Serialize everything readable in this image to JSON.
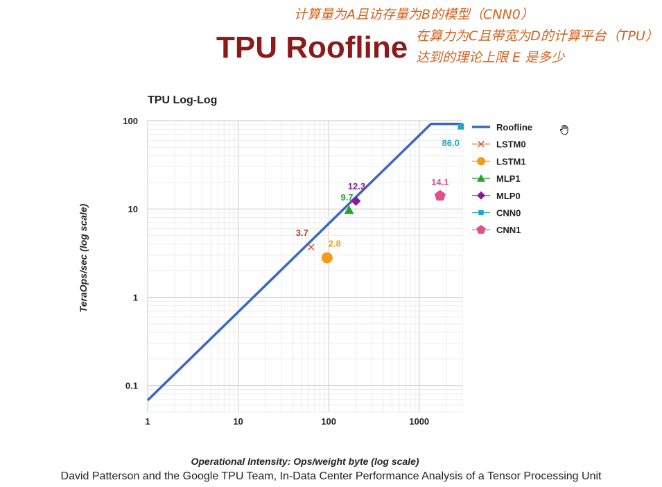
{
  "slide": {
    "title": "TPU Roofline",
    "annotation_lines": [
      "计算量为A且访存量为B的模型（CNN0）",
      "在算力为C且带宽为D的计算平台（TPU）",
      "达到的理论上限 E 是多少"
    ],
    "citation": "David Patterson and the Google TPU Team, In-Data Center Performance Analysis of a Tensor Processing Unit"
  },
  "chart_data": {
    "type": "scatter",
    "title": "TPU Log-Log",
    "xlabel": "Operational Intensity: Ops/weight byte (log scale)",
    "ylabel": "TeraOps/sec (log scale)",
    "xscale": "log",
    "yscale": "log",
    "xlim": [
      1,
      3000
    ],
    "ylim": [
      0.05,
      100
    ],
    "xticks": [
      {
        "value": 1,
        "label": "1"
      },
      {
        "value": 10,
        "label": "10"
      },
      {
        "value": 100,
        "label": "100"
      },
      {
        "value": 1000,
        "label": "1000"
      }
    ],
    "yticks": [
      {
        "value": 0.1,
        "label": "0.1"
      },
      {
        "value": 1,
        "label": "1"
      },
      {
        "value": 10,
        "label": "10"
      },
      {
        "value": 100,
        "label": "100"
      }
    ],
    "grid": true,
    "legend_position": "right",
    "roofline": {
      "name": "Roofline",
      "color": "#3a66c4",
      "points": [
        [
          1,
          0.068
        ],
        [
          1350,
          92
        ],
        [
          2950,
          92
        ]
      ]
    },
    "series": [
      {
        "name": "LSTM0",
        "marker": "x",
        "color": "#d9542c",
        "x": 64,
        "y": 3.7,
        "label": "3.7",
        "label_color": "#c0392b"
      },
      {
        "name": "LSTM1",
        "marker": "circle",
        "color": "#f39c1a",
        "x": 96,
        "y": 2.8,
        "label": "2.8",
        "label_color": "#f39c1a"
      },
      {
        "name": "MLP1",
        "marker": "triangle",
        "color": "#2ca02c",
        "x": 168,
        "y": 9.7,
        "label": "9.7",
        "label_color": "#2ca02c"
      },
      {
        "name": "MLP0",
        "marker": "diamond",
        "color": "#8b1a9b",
        "x": 200,
        "y": 12.3,
        "label": "12.3",
        "label_color": "#8b1a9b"
      },
      {
        "name": "CNN0",
        "marker": "square",
        "color": "#26a6c4",
        "x": 2888,
        "y": 86.0,
        "label": "86.0",
        "label_color": "#26a6c4"
      },
      {
        "name": "CNN1",
        "marker": "pentagon",
        "color": "#e0508a",
        "x": 1700,
        "y": 14.1,
        "label": "14.1",
        "label_color": "#e0508a"
      }
    ]
  }
}
